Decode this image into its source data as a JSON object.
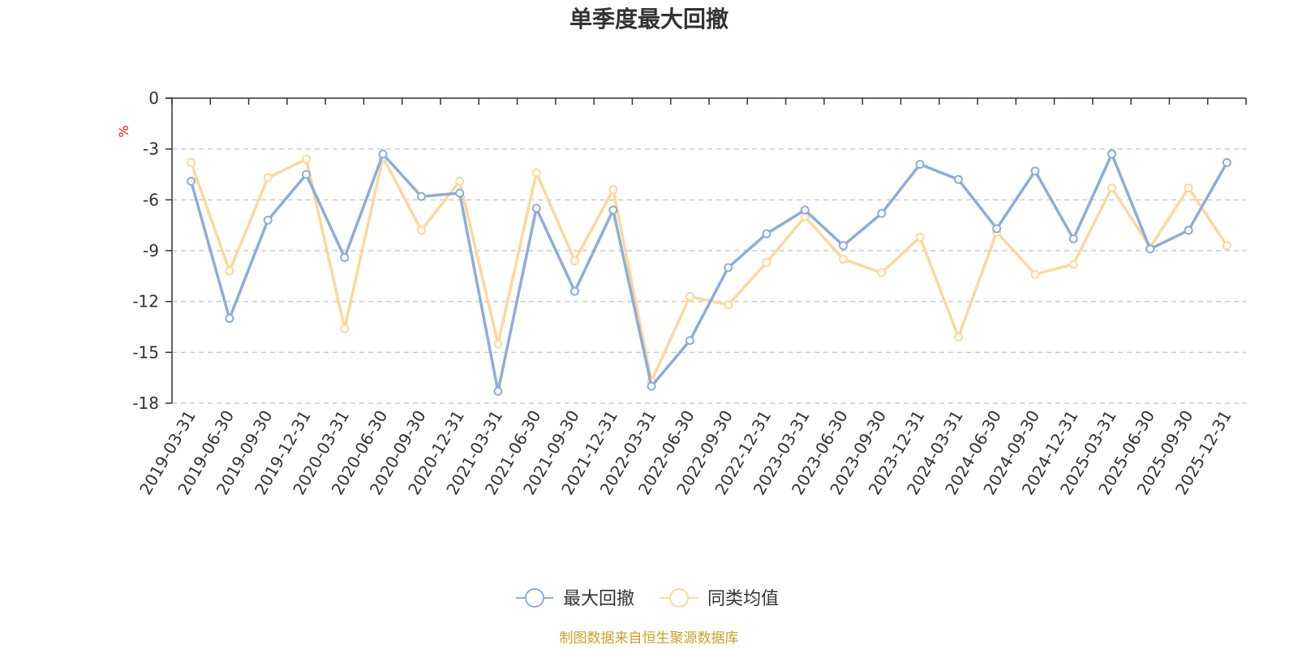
{
  "chart_data": {
    "type": "line",
    "title": "单季度最大回撤",
    "ylabel": "%",
    "ylim": [
      -18,
      0
    ],
    "yticks": [
      0,
      -3,
      -6,
      -9,
      -12,
      -15,
      -18
    ],
    "grid": true,
    "legend_position": "bottom",
    "categories": [
      "2019-03-31",
      "2019-06-30",
      "2019-09-30",
      "2019-12-31",
      "2020-03-31",
      "2020-06-30",
      "2020-09-30",
      "2020-12-31",
      "2021-03-31",
      "2021-06-30",
      "2021-09-30",
      "2021-12-31",
      "2022-03-31",
      "2022-06-30",
      "2022-09-30",
      "2022-12-31",
      "2023-03-31",
      "2023-06-30",
      "2023-09-30",
      "2023-12-31",
      "2024-03-31",
      "2024-06-30",
      "2024-09-30",
      "2024-12-31",
      "2025-03-31",
      "2025-06-30",
      "2025-09-30",
      "2025-12-31"
    ],
    "series": [
      {
        "name": "最大回撤",
        "color": "#8eacd9",
        "values": [
          -4.9,
          -13.0,
          -7.2,
          -4.5,
          -9.4,
          -3.3,
          -5.8,
          -5.6,
          -17.3,
          -6.5,
          -11.4,
          -6.6,
          -17.0,
          -14.3,
          -10.0,
          -8.0,
          -6.6,
          -8.7,
          -6.8,
          -3.9,
          -4.8,
          -7.7,
          -4.3,
          -8.3,
          -3.3,
          -8.9,
          -7.8,
          -3.8
        ]
      },
      {
        "name": "同类均值",
        "color": "#fcd89b",
        "values": [
          -3.8,
          -10.2,
          -4.7,
          -3.6,
          -13.6,
          -3.5,
          -7.8,
          -4.9,
          -14.5,
          -4.4,
          -9.6,
          -5.4,
          -16.7,
          -11.7,
          -12.2,
          -9.7,
          -7.0,
          -9.5,
          -10.3,
          -8.2,
          -14.1,
          -7.9,
          -10.4,
          -9.8,
          -5.3,
          -8.8,
          -5.3,
          -8.7
        ]
      }
    ]
  },
  "source": "制图数据来自恒生聚源数据库",
  "colors": {
    "axis": "#333333",
    "grid": "#cccccc",
    "unit": "#e8120c",
    "source": "#c9a227"
  }
}
